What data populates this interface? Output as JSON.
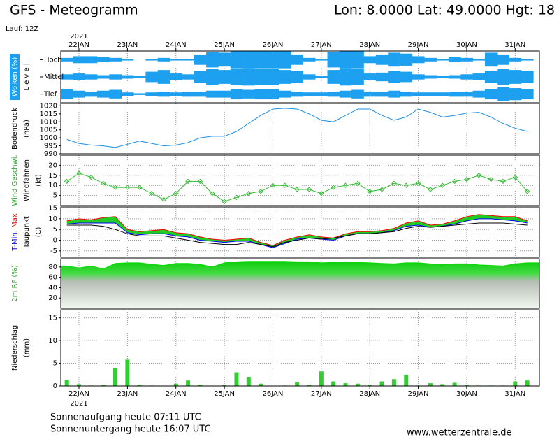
{
  "chart_data": {
    "type": "meteogram",
    "title": "GFS - Meteogramm",
    "location": "Lon: 8.0000 Lat: 49.0000 Hgt: 18",
    "run": "Lauf: 12Z",
    "year": "2021",
    "xlim": [
      -0.375,
      9.5
    ],
    "xticks": [
      {
        "value": 0,
        "label": "22JAN"
      },
      {
        "value": 1,
        "label": "23JAN"
      },
      {
        "value": 2,
        "label": "24JAN"
      },
      {
        "value": 3,
        "label": "25JAN"
      },
      {
        "value": 4,
        "label": "26JAN"
      },
      {
        "value": 5,
        "label": "27JAN"
      },
      {
        "value": 6,
        "label": "28JAN"
      },
      {
        "value": 7,
        "label": "29JAN"
      },
      {
        "value": 8,
        "label": "30JAN"
      },
      {
        "value": 9,
        "label": "31JAN"
      }
    ],
    "x": [
      -0.25,
      0,
      0.25,
      0.5,
      0.75,
      1,
      1.25,
      1.5,
      1.75,
      2,
      2.25,
      2.5,
      2.75,
      3,
      3.25,
      3.5,
      3.75,
      4,
      4.25,
      4.5,
      4.75,
      5,
      5.25,
      5.5,
      5.75,
      6,
      6.25,
      6.5,
      6.75,
      7,
      7.25,
      7.5,
      7.75,
      8,
      8.25,
      8.5,
      8.75,
      9,
      9.25
    ],
    "panels": [
      {
        "type": "cloud",
        "ylabel": [
          [
            {
              "text": "Wolken (%)",
              "color": "#ffffff"
            }
          ],
          [
            {
              "text": "L e v e l",
              "color": "#000000"
            }
          ]
        ],
        "ylabel_bg": "#1ea0f0",
        "levels": [
          "Hoch",
          "Mittel",
          "Tief"
        ],
        "color": "#1ea0f0",
        "series": [
          {
            "values": [
              20,
              40,
              40,
              30,
              20,
              10,
              0,
              10,
              20,
              10,
              10,
              60,
              90,
              80,
              100,
              100,
              100,
              100,
              100,
              60,
              20,
              10,
              90,
              100,
              100,
              40,
              60,
              80,
              70,
              40,
              20,
              10,
              30,
              20,
              10,
              80,
              60,
              20,
              10
            ]
          },
          {
            "values": [
              30,
              40,
              30,
              20,
              30,
              20,
              10,
              60,
              80,
              40,
              30,
              70,
              90,
              80,
              90,
              100,
              90,
              90,
              80,
              70,
              30,
              10,
              80,
              100,
              90,
              40,
              50,
              70,
              60,
              30,
              20,
              10,
              20,
              30,
              40,
              70,
              90,
              80,
              70
            ]
          },
          {
            "values": [
              60,
              40,
              30,
              40,
              50,
              20,
              10,
              20,
              30,
              20,
              30,
              30,
              40,
              40,
              60,
              50,
              60,
              60,
              40,
              30,
              20,
              20,
              30,
              40,
              50,
              30,
              30,
              40,
              30,
              20,
              20,
              20,
              30,
              30,
              40,
              60,
              80,
              70,
              60
            ]
          }
        ]
      },
      {
        "type": "line",
        "ylabel": [
          [
            {
              "text": "Bodendruck",
              "color": "#000000"
            }
          ],
          [
            {
              "text": "(hPa)",
              "color": "#000000"
            }
          ]
        ],
        "ylim": [
          990,
          1021.5
        ],
        "yticks": [
          990,
          995,
          1000,
          1005,
          1010,
          1015,
          1020
        ],
        "grid": false,
        "series": [
          {
            "color": "#1e8fe0",
            "values": [
              999,
              996.5,
              995.5,
              995,
              994,
              996,
              998,
              996.5,
              995,
              995.5,
              997,
              1000,
              1001,
              1001,
              1004,
              1009,
              1014,
              1018,
              1018.5,
              1018,
              1015,
              1011,
              1010,
              1014,
              1018,
              1018,
              1014,
              1011,
              1013,
              1018,
              1016,
              1013,
              1014,
              1015.5,
              1016,
              1013,
              1009,
              1006,
              1004
            ]
          }
        ]
      },
      {
        "type": "line",
        "markers": true,
        "ylabel": [
          [
            {
              "text": "Wind Geschwi.",
              "color": "#22aa22"
            }
          ],
          [
            {
              "text": "Windfahnen",
              "color": "#000000"
            }
          ],
          [
            {
              "text": "(kt)",
              "color": "#000000"
            }
          ]
        ],
        "ylim": [
          0,
          25
        ],
        "yticks": [
          5,
          10,
          15,
          20
        ],
        "grid": true,
        "series": [
          {
            "color": "#33bb33",
            "values": [
              12,
              16,
              14,
              11,
              9,
              9,
              9,
              6,
              3,
              6,
              12,
              12,
              6,
              2,
              4,
              6,
              7,
              10,
              10,
              8,
              8,
              6,
              9,
              10,
              11,
              7,
              8,
              11,
              10,
              11,
              8,
              10,
              12,
              13,
              15,
              13,
              12,
              14,
              7
            ]
          }
        ]
      },
      {
        "type": "band",
        "ylabel": [
          [
            {
              "text": "T-Min",
              "color": "#0000ff"
            },
            {
              "text": ", ",
              "color": "#000000"
            },
            {
              "text": "Max",
              "color": "#ff0000"
            }
          ],
          [
            {
              "text": "Taupunkt",
              "color": "#000000"
            }
          ],
          [
            {
              "text": "(C)",
              "color": "#000000"
            }
          ]
        ],
        "ylim": [
          -8,
          15.5
        ],
        "yticks": [
          -5,
          0,
          5,
          10,
          15
        ],
        "grid": true,
        "fill": "#22cc22",
        "series": [
          {
            "color": "#0000ff",
            "values": [
              7.5,
              8,
              8,
              8,
              8,
              3.5,
              2.5,
              3,
              3,
              2,
              1.5,
              0,
              -0.5,
              -1,
              -0.5,
              -0.5,
              -2,
              -3.5,
              -1.5,
              0.5,
              1,
              0.5,
              0,
              2,
              3,
              3,
              3.5,
              4.5,
              6.5,
              7,
              6,
              6.5,
              7.5,
              9,
              10,
              10,
              9.5,
              9,
              8
            ]
          },
          {
            "color": "#ff0000",
            "values": [
              9,
              10,
              9.5,
              10.5,
              11,
              5,
              4,
              4.5,
              5,
              3.5,
              3,
              1.5,
              0.5,
              0,
              0.5,
              1,
              -1,
              -2.5,
              0,
              1.5,
              2.5,
              1.5,
              1,
              3,
              4,
              4,
              4.5,
              5.5,
              8,
              9,
              7,
              7.5,
              9,
              11,
              12,
              11.5,
              11,
              11,
              9
            ]
          },
          {
            "color": "#000000",
            "values": [
              7,
              7,
              7,
              6.5,
              5,
              3,
              2,
              2,
              2,
              1,
              0,
              -1,
              -1.5,
              -2,
              -2,
              -1,
              -2,
              -3,
              -1,
              0,
              1,
              0.5,
              1,
              2,
              3,
              3,
              3.5,
              4,
              5.5,
              6.5,
              6,
              6.5,
              7,
              7.5,
              8,
              8,
              8,
              7.5,
              7
            ]
          }
        ]
      },
      {
        "type": "area",
        "ylabel": [
          [
            {
              "text": "2m RF (%)",
              "color": "#22aa22"
            }
          ]
        ],
        "ylim": [
          0,
          96
        ],
        "yticks": [
          20,
          40,
          60,
          80
        ],
        "grid": false,
        "series": [
          {
            "color": "#00dd00",
            "values": [
              82,
              78,
              82,
              76,
              87,
              88,
              88,
              85,
              83,
              87,
              87,
              85,
              80,
              88,
              90,
              91,
              91,
              91,
              91,
              90,
              90,
              88,
              89,
              90,
              89,
              88,
              87,
              86,
              88,
              88,
              86,
              85,
              86,
              86,
              84,
              83,
              82,
              86,
              88
            ]
          }
        ]
      },
      {
        "type": "bar",
        "ylabel": [
          [
            {
              "text": "Niederschlag",
              "color": "#000000"
            }
          ],
          [
            {
              "text": "(mm)",
              "color": "#000000"
            }
          ]
        ],
        "ylim": [
          0,
          16.8
        ],
        "yticks": [
          0,
          5,
          10,
          15
        ],
        "grid": true,
        "series": [
          {
            "color": "#33cc33",
            "values": [
              1.3,
              0.4,
              0.1,
              0.2,
              4,
              5.8,
              0.2,
              0.1,
              0,
              0.5,
              1.2,
              0.3,
              0,
              0.2,
              3,
              2,
              0.5,
              0,
              0.1,
              0.8,
              0.3,
              3.2,
              1,
              0.6,
              0.5,
              0.3,
              1,
              1.5,
              2.5,
              0.1,
              0.6,
              0.4,
              0.7,
              0.3,
              0.1,
              0.1,
              0.1,
              1,
              1.2
            ]
          }
        ]
      }
    ],
    "footer": {
      "sunrise": "Sonnenaufgang heute 07:11 UTC",
      "sunset": "Sonnenuntergang heute 16:07 UTC",
      "source": "www.wetterzentrale.de"
    }
  }
}
